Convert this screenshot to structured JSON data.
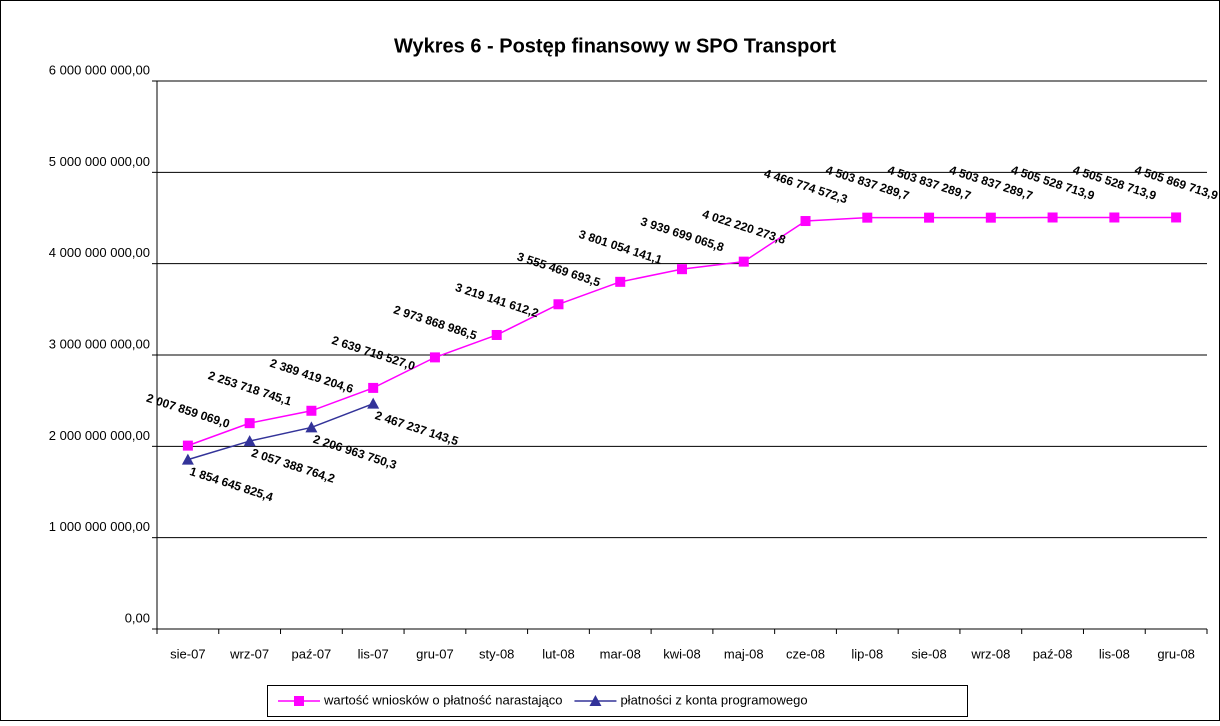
{
  "chart_data": {
    "type": "line",
    "title": "Wykres 6 - Postęp finansowy w SPO Transport",
    "categories": [
      "sie-07",
      "wrz-07",
      "paź-07",
      "lis-07",
      "gru-07",
      "sty-08",
      "lut-08",
      "mar-08",
      "kwi-08",
      "maj-08",
      "cze-08",
      "lip-08",
      "sie-08",
      "wrz-08",
      "paź-08",
      "lis-08",
      "gru-08"
    ],
    "series": [
      {
        "name": "wartość wniosków o płatność narastająco",
        "color": "#ff00ff",
        "marker": "square",
        "values": [
          2007859069.0,
          2253718745.1,
          2389419204.6,
          2639718527.0,
          2973868986.5,
          3219141612.2,
          3555469693.5,
          3801054141.1,
          3939699065.8,
          4022220273.8,
          4466774572.3,
          4503837289.7,
          4503837289.7,
          4503837289.7,
          4505528713.9,
          4505528713.9,
          4505869713.9
        ],
        "value_labels": [
          "2 007 859 069,0",
          "2 253 718 745,1",
          "2 389 419 204,6",
          "2 639 718 527,0",
          "2 973 868 986,5",
          "3 219 141 612,2",
          "3 555 469 693,5",
          "3 801 054 141,1",
          "3 939 699 065,8",
          "4 022 220 273,8",
          "4 466 774 572,3",
          "4 503 837 289,7",
          "4 503 837 289,7",
          "4 503 837 289,7",
          "4 505 528 713,9",
          "4 505 528 713,9",
          "4 505 869 713,9"
        ]
      },
      {
        "name": "płatności z konta programowego",
        "color": "#333399",
        "marker": "triangle",
        "values": [
          1854645825.4,
          2057388764.2,
          2206963750.3,
          2467237143.5,
          null,
          null,
          null,
          null,
          null,
          null,
          null,
          null,
          null,
          null,
          null,
          null,
          null
        ],
        "value_labels": [
          "1 854 645 825,4",
          "2 057 388 764,2",
          "2 206 963 750,3",
          "2 467 237 143,5",
          null,
          null,
          null,
          null,
          null,
          null,
          null,
          null,
          null,
          null,
          null,
          null,
          null
        ]
      }
    ],
    "ylim": [
      0,
      6000000000
    ],
    "yticks": [
      {
        "value": 0,
        "label": "0,00"
      },
      {
        "value": 1000000000,
        "label": "1 000 000 000,00"
      },
      {
        "value": 2000000000,
        "label": "2 000 000 000,00"
      },
      {
        "value": 3000000000,
        "label": "3 000 000 000,00"
      },
      {
        "value": 4000000000,
        "label": "4 000 000 000,00"
      },
      {
        "value": 5000000000,
        "label": "5 000 000 000,00"
      },
      {
        "value": 6000000000,
        "label": "6 000 000 000,00"
      }
    ],
    "grid": true,
    "legend": "bottom"
  }
}
